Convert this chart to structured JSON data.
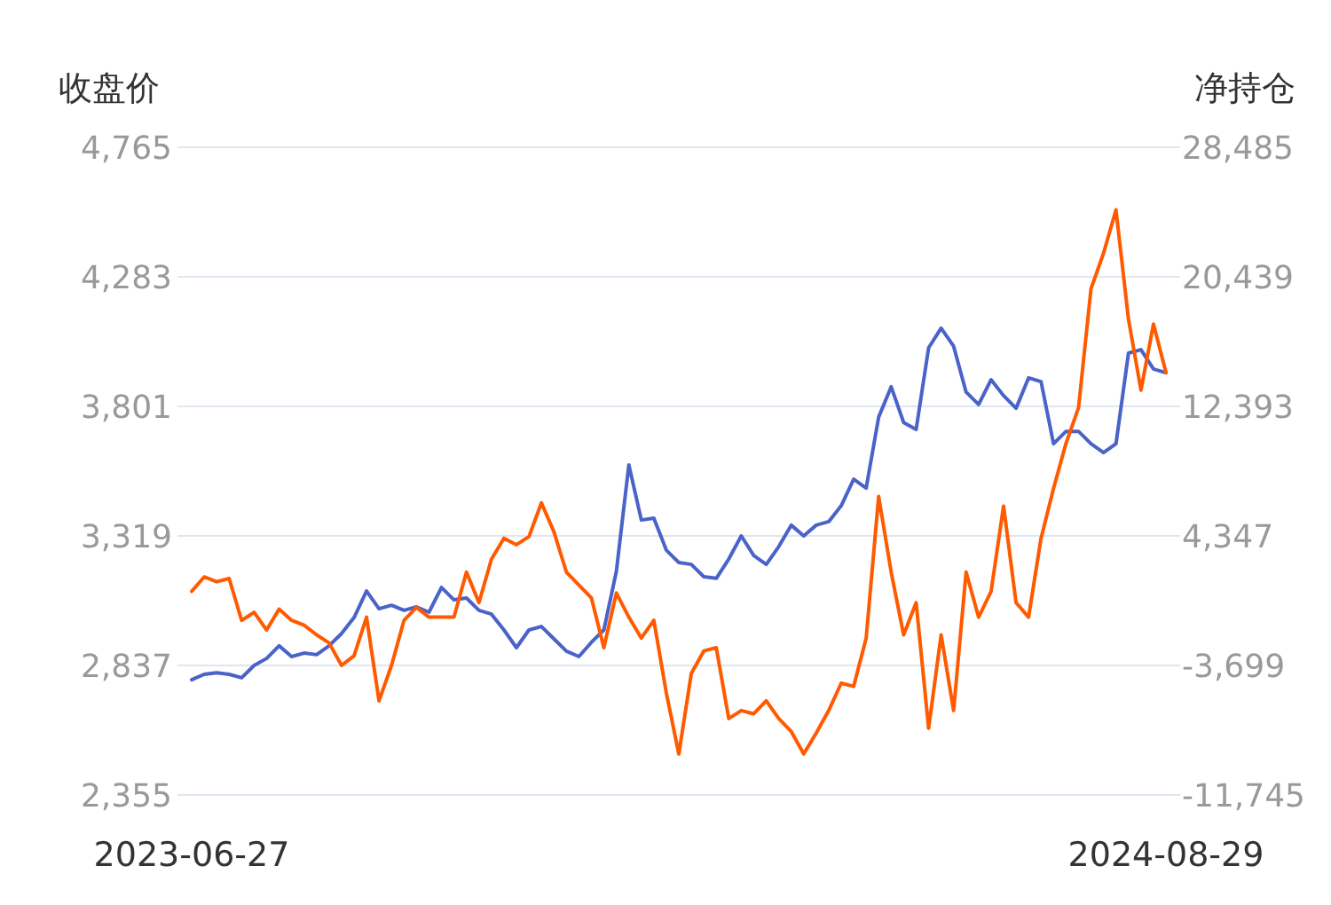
{
  "chart_data": {
    "type": "line",
    "ylabel": "收盘价",
    "y2label": "净持仓",
    "categories": [
      "2023-06-27",
      null,
      null,
      null,
      null,
      null,
      null,
      null,
      null,
      null,
      null,
      null,
      null,
      null,
      null,
      null,
      null,
      null,
      null,
      null,
      null,
      null,
      null,
      null,
      null,
      null,
      null,
      null,
      null,
      null,
      null,
      null,
      null,
      null,
      null,
      null,
      null,
      null,
      null,
      null,
      null,
      null,
      null,
      null,
      null,
      null,
      null,
      null,
      null,
      null,
      null,
      null,
      null,
      null,
      null,
      null,
      null,
      null,
      null,
      null,
      null,
      null,
      null,
      null,
      null,
      null,
      null,
      null,
      null,
      null,
      null,
      null,
      null,
      null,
      null,
      null,
      null,
      null,
      "2024-08-29"
    ],
    "series": [
      {
        "color": "#4a63c8",
        "values": [
          2784,
          2804,
          2810,
          2804,
          2791,
          2837,
          2863,
          2910,
          2870,
          2883,
          2877,
          2910,
          2956,
          3015,
          3114,
          3048,
          3061,
          3042,
          3055,
          3035,
          3127,
          3081,
          3088,
          3042,
          3028,
          2969,
          2903,
          2969,
          2982,
          2936,
          2890,
          2870,
          2923,
          2969,
          3187,
          3583,
          3378,
          3385,
          3266,
          3220,
          3213,
          3167,
          3161,
          3233,
          3319,
          3246,
          3213,
          3279,
          3359,
          3319,
          3359,
          3372,
          3431,
          3530,
          3497,
          3761,
          3874,
          3741,
          3715,
          4019,
          4092,
          4025,
          3854,
          3808,
          3900,
          3841,
          3794,
          3907,
          3893,
          3662,
          3708,
          3708,
          3662,
          3629,
          3662,
          3999,
          4012,
          3940,
          3926
        ]
      },
      {
        "color": "#ff5a00",
        "axis": "y2",
        "values": [
          900,
          1800,
          1500,
          1700,
          -900,
          -400,
          -1500,
          -200,
          -900,
          -1200,
          -1800,
          -2300,
          -3700,
          -3100,
          -700,
          -5900,
          -3700,
          -900,
          -100,
          -700,
          -700,
          -700,
          2100,
          200,
          2900,
          4200,
          3800,
          4300,
          6400,
          4600,
          2100,
          1300,
          500,
          -2600,
          800,
          -700,
          -2000,
          -900,
          -5400,
          -9200,
          -4200,
          -2800,
          -2600,
          -7000,
          -6500,
          -6700,
          -5900,
          -7000,
          -7800,
          -9200,
          -7900,
          -6500,
          -4800,
          -5000,
          -2000,
          6800,
          2100,
          -1800,
          200,
          -7600,
          -1800,
          -6500,
          2100,
          -700,
          900,
          6200,
          200,
          -700,
          4200,
          7300,
          10100,
          12300,
          19700,
          21900,
          24600,
          17800,
          13400,
          17500,
          14500
        ]
      }
    ],
    "ylim": [
      2355,
      4765
    ],
    "yticks": [
      {
        "value": 2355,
        "label": "2,355"
      },
      {
        "value": 2837,
        "label": "2,837"
      },
      {
        "value": 3319,
        "label": "3,319"
      },
      {
        "value": 3801,
        "label": "3,801"
      },
      {
        "value": 4283,
        "label": "4,283"
      },
      {
        "value": 4765,
        "label": "4,765"
      }
    ],
    "y2lim": [
      -11745,
      28485
    ],
    "y2ticks": [
      {
        "value": -11745,
        "label": "-11,745"
      },
      {
        "value": -3699,
        "label": "-3,699"
      },
      {
        "value": 4347,
        "label": "4,347"
      },
      {
        "value": 12393,
        "label": "12,393"
      },
      {
        "value": 20439,
        "label": "20,439"
      },
      {
        "value": 28485,
        "label": "28,485"
      }
    ],
    "grid": "y"
  }
}
